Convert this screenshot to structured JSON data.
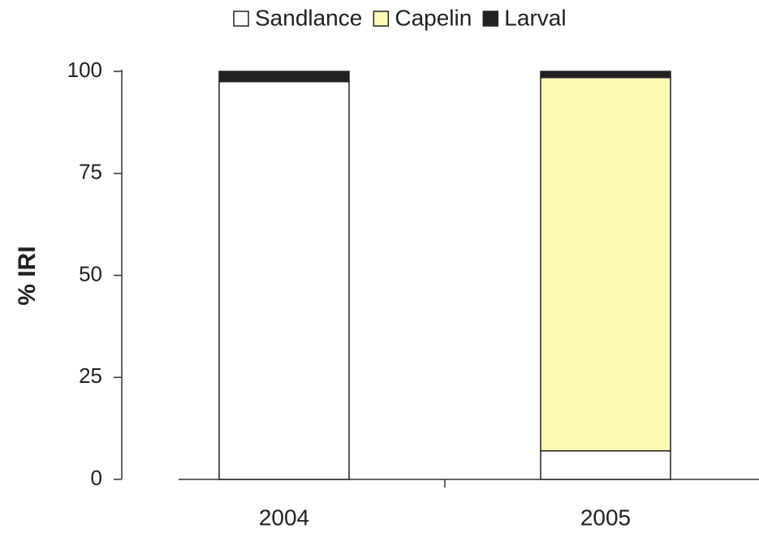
{
  "chart_data": {
    "type": "stacked-bar",
    "y_label": "% IRI",
    "categories": [
      "2004",
      "2005"
    ],
    "series": [
      {
        "name": "Sandlance",
        "color": "#ffffff",
        "values": [
          97.5,
          7
        ]
      },
      {
        "name": "Capelin",
        "color": "#fafab4",
        "values": [
          0,
          91.5
        ]
      },
      {
        "name": "Larval",
        "color": "#222222",
        "values": [
          2.5,
          1.5
        ]
      }
    ],
    "ylim": [
      0,
      100
    ],
    "yticks": [
      0,
      25,
      50,
      75,
      100
    ]
  }
}
